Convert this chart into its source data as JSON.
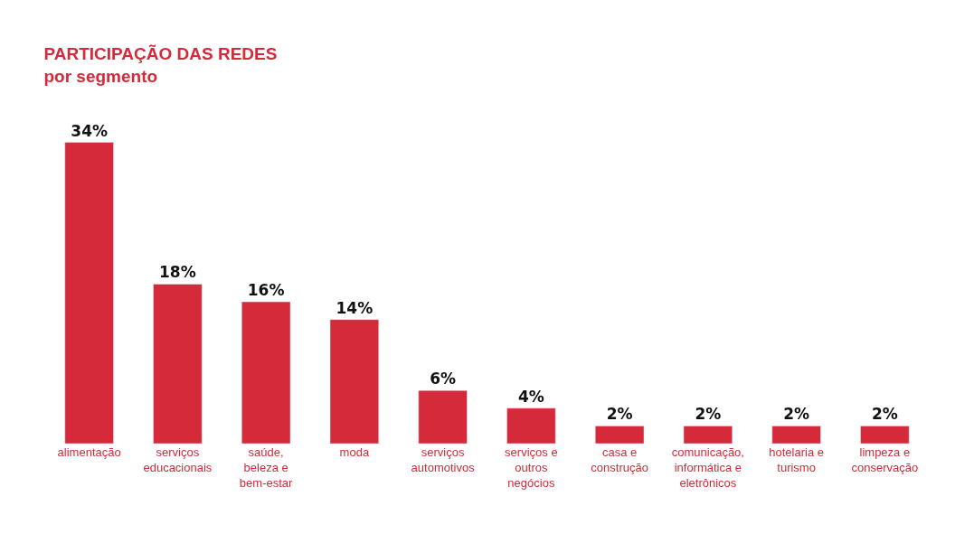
{
  "chart_data": {
    "type": "bar",
    "title": "PARTICIPAÇÃO DAS REDES",
    "subtitle": "por segmento",
    "categories": [
      "alimentação",
      "serviços\neducacionais",
      "saúde,\nbeleza e\nbem-estar",
      "moda",
      "serviços\nautomotivos",
      "serviços e\noutros\nnegócios",
      "casa e\nconstrução",
      "comunicação,\ninformática e\neletrônicos",
      "hotelaria e\nturismo",
      "limpeza e\nconservação"
    ],
    "values": [
      34,
      18,
      16,
      14,
      6,
      4,
      2,
      2,
      2,
      2
    ],
    "value_labels": [
      "34%",
      "18%",
      "16%",
      "14%",
      "6%",
      "4%",
      "2%",
      "2%",
      "2%",
      "2%"
    ],
    "color": "#d42a3a",
    "legend": false
  }
}
